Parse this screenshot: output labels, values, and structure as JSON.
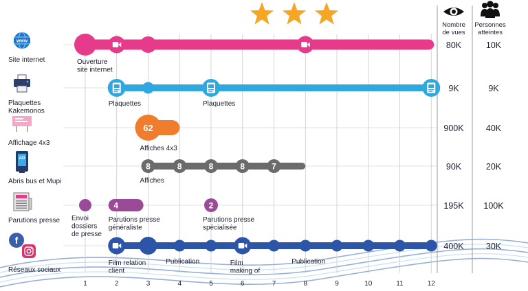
{
  "stars": 3,
  "metric_headers": {
    "views": "Nombre de vues",
    "reach": "Personnes atteintes"
  },
  "months": [
    "1",
    "2",
    "3",
    "4",
    "5",
    "6",
    "7",
    "8",
    "9",
    "10",
    "11",
    "12"
  ],
  "colors": {
    "pink": "#e63b8a",
    "blue": "#2fa8df",
    "orange": "#ef7d2d",
    "gray": "#6b6b6b",
    "purple": "#9b4a98",
    "navy": "#2c55a8",
    "star": "#f5a623",
    "grid": "#c8c8c8"
  },
  "rows": [
    {
      "id": "site",
      "label": "Site internet",
      "icon": "globe-www-icon",
      "views": "80K",
      "reach": "10K",
      "color": "#e63b8a",
      "bar": {
        "from": 1,
        "to": 12
      },
      "markers": [
        {
          "month": 1,
          "kind": "big",
          "label": "Ouverture\nsite internet"
        },
        {
          "month": 2,
          "kind": "video"
        },
        {
          "month": 3,
          "kind": "dot"
        },
        {
          "month": 8,
          "kind": "video"
        }
      ]
    },
    {
      "id": "plaquettes",
      "label": "Plaquettes\nKakemonos",
      "icon": "printer-icon",
      "views": "9K",
      "reach": "9K",
      "color": "#2fa8df",
      "bar": {
        "from": 2,
        "to": 12
      },
      "markers": [
        {
          "month": 2,
          "kind": "doc",
          "label": "Plaquettes"
        },
        {
          "month": 3,
          "kind": "dot"
        },
        {
          "month": 5,
          "kind": "doc",
          "label": "Plaquettes"
        },
        {
          "month": 12,
          "kind": "doc"
        }
      ]
    },
    {
      "id": "affichage",
      "label": "Affichage 4x3",
      "icon": "billboard-icon",
      "views": "900K",
      "reach": "40K",
      "color": "#ef7d2d",
      "bar": {
        "from": 3,
        "to": 4
      },
      "markers": [
        {
          "month": 3,
          "kind": "count",
          "text": "62",
          "label": "Affiches 4x3"
        }
      ]
    },
    {
      "id": "abris",
      "label": "Abris bus et Mupi",
      "icon": "bus-shelter-icon",
      "views": "90K",
      "reach": "20K",
      "color": "#6b6b6b",
      "bar": {
        "from": 3,
        "to": 8
      },
      "markers": [
        {
          "month": 3,
          "kind": "num",
          "text": "8",
          "label": "Affiches"
        },
        {
          "month": 4,
          "kind": "num",
          "text": "8"
        },
        {
          "month": 5,
          "kind": "num",
          "text": "8"
        },
        {
          "month": 6,
          "kind": "num",
          "text": "8"
        },
        {
          "month": 7,
          "kind": "num",
          "text": "7"
        }
      ]
    },
    {
      "id": "presse",
      "label": "Parutions presse",
      "icon": "newspaper-icon",
      "views": "195K",
      "reach": "100K",
      "color": "#9b4a98",
      "markers": [
        {
          "month": 1,
          "kind": "dot",
          "label": "Envoi\ndossiers\nde presse"
        },
        {
          "month": 2,
          "kind": "pill",
          "text": "4",
          "to": 2.85,
          "label": "Parutions presse\ngénéraliste"
        },
        {
          "month": 5,
          "kind": "num",
          "text": "2",
          "label": "Parutions presse\nspécialisée"
        }
      ]
    },
    {
      "id": "reseaux",
      "label": "Réseaux sociaux",
      "icon": "social-media-icon",
      "views": "400K",
      "reach": "30K",
      "color": "#2c55a8",
      "bar": {
        "from": 2,
        "to": 12
      },
      "markers": [
        {
          "month": 2,
          "kind": "video",
          "label": "Film relation\nclient"
        },
        {
          "month": 3,
          "kind": "big"
        },
        {
          "month": 4,
          "kind": "dot",
          "label": "Publication"
        },
        {
          "month": 5,
          "kind": "dot"
        },
        {
          "month": 6,
          "kind": "video",
          "label": "Film\nmaking of"
        },
        {
          "month": 7,
          "kind": "dot"
        },
        {
          "month": 8,
          "kind": "dot",
          "label": "Publication"
        },
        {
          "month": 9,
          "kind": "dot"
        },
        {
          "month": 10,
          "kind": "dot"
        },
        {
          "month": 11,
          "kind": "dot"
        },
        {
          "month": 12,
          "kind": "dot"
        }
      ]
    }
  ]
}
